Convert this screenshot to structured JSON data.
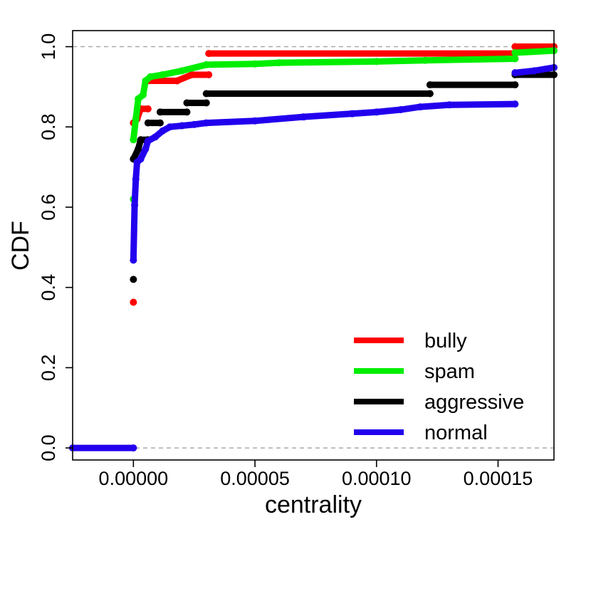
{
  "chart_data": {
    "type": "line",
    "title": "",
    "xlabel": "centrality",
    "ylabel": "CDF",
    "xlim": [
      -2.5e-05,
      0.000173
    ],
    "ylim": [
      -0.03,
      1.04
    ],
    "x_ticks": [
      0,
      5e-05,
      0.0001,
      0.00015
    ],
    "x_tick_labels": [
      "0.00000",
      "0.00005",
      "0.00010",
      "0.00015"
    ],
    "y_ticks": [
      0,
      0.2,
      0.4,
      0.6,
      0.8,
      1.0
    ],
    "y_tick_labels": [
      "0.0",
      "0.2",
      "0.4",
      "0.6",
      "0.8",
      "1.0"
    ],
    "reference_lines_y": [
      0,
      1
    ],
    "grid": false,
    "legend_position": "bottom-right",
    "series": [
      {
        "name": "bully",
        "color": "#ff0000",
        "points": [
          [
            0,
            0.363
          ],
          [
            0,
            0.81
          ],
          [
            1.5e-06,
            0.82
          ],
          [
            3e-06,
            0.845
          ],
          [
            6e-06,
            0.845
          ],
          [
            6e-06,
            0.915
          ],
          [
            1.8e-05,
            0.915
          ],
          [
            2.4e-05,
            0.93
          ],
          [
            3.1e-05,
            0.93
          ],
          [
            3.1e-05,
            0.983
          ],
          [
            0.000157,
            0.983
          ],
          [
            0.000157,
            1.0
          ],
          [
            0.000173,
            1.0
          ]
        ]
      },
      {
        "name": "spam",
        "color": "#00ee00",
        "points": [
          [
            0,
            0.62
          ],
          [
            0,
            0.768
          ],
          [
            1e-06,
            0.82
          ],
          [
            2e-06,
            0.87
          ],
          [
            4e-06,
            0.88
          ],
          [
            5e-06,
            0.915
          ],
          [
            7e-06,
            0.925
          ],
          [
            1.2e-05,
            0.93
          ],
          [
            2e-05,
            0.94
          ],
          [
            3e-05,
            0.955
          ],
          [
            5e-05,
            0.957
          ],
          [
            6e-05,
            0.96
          ],
          [
            0.0001,
            0.963
          ],
          [
            0.00012,
            0.966
          ],
          [
            0.000157,
            0.97
          ],
          [
            0.000157,
            0.985
          ],
          [
            0.000173,
            0.99
          ]
        ]
      },
      {
        "name": "aggressive",
        "color": "#000000",
        "points": [
          [
            0,
            0.42
          ],
          [
            0,
            0.72
          ],
          [
            2e-06,
            0.745
          ],
          [
            3e-06,
            0.768
          ],
          [
            6e-06,
            0.768
          ],
          [
            6e-06,
            0.81
          ],
          [
            1.1e-05,
            0.81
          ],
          [
            1.1e-05,
            0.837
          ],
          [
            2.2e-05,
            0.837
          ],
          [
            2.2e-05,
            0.86
          ],
          [
            3e-05,
            0.86
          ],
          [
            3e-05,
            0.883
          ],
          [
            0.000122,
            0.883
          ],
          [
            0.000122,
            0.905
          ],
          [
            0.000157,
            0.905
          ],
          [
            0.000157,
            0.93
          ],
          [
            0.000173,
            0.93
          ]
        ]
      },
      {
        "name": "normal",
        "color": "#2200ee",
        "points": [
          [
            -2.5e-05,
            0
          ],
          [
            0,
            0
          ],
          [
            0,
            0.468
          ],
          [
            5e-07,
            0.605
          ],
          [
            1e-06,
            0.67
          ],
          [
            1.5e-06,
            0.712
          ],
          [
            3e-06,
            0.72
          ],
          [
            5e-06,
            0.745
          ],
          [
            6e-06,
            0.765
          ],
          [
            9e-06,
            0.775
          ],
          [
            1.2e-05,
            0.79
          ],
          [
            1.5e-05,
            0.8
          ],
          [
            2e-05,
            0.803
          ],
          [
            2.5e-05,
            0.806
          ],
          [
            3e-05,
            0.81
          ],
          [
            5e-05,
            0.815
          ],
          [
            7e-05,
            0.825
          ],
          [
            9e-05,
            0.833
          ],
          [
            0.0001,
            0.837
          ],
          [
            0.00011,
            0.843
          ],
          [
            0.000118,
            0.85
          ],
          [
            0.00013,
            0.855
          ],
          [
            0.000157,
            0.857
          ],
          [
            0.000157,
            0.935
          ],
          [
            0.000165,
            0.94
          ],
          [
            0.000173,
            0.948
          ]
        ]
      }
    ]
  }
}
